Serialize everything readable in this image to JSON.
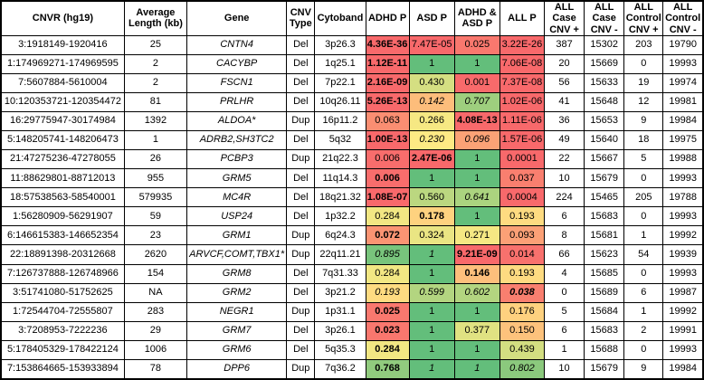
{
  "table": {
    "columns": [
      {
        "key": "cnvr",
        "label": "CNVR (hg19)"
      },
      {
        "key": "avg_length_kb",
        "label": "Average Length (kb)"
      },
      {
        "key": "gene",
        "label": "Gene"
      },
      {
        "key": "cnv_type",
        "label": "CNV Type"
      },
      {
        "key": "cytoband",
        "label": "Cytoband"
      },
      {
        "key": "adhd_p",
        "label": "ADHD P"
      },
      {
        "key": "asd_p",
        "label": "ASD P"
      },
      {
        "key": "adhd_asd_p",
        "label": "ADHD & ASD P"
      },
      {
        "key": "all_p",
        "label": "ALL P"
      },
      {
        "key": "all_case_cnv_pos",
        "label": "ALL Case CNV +"
      },
      {
        "key": "all_case_cnv_neg",
        "label": "ALL Case CNV -"
      },
      {
        "key": "all_control_cnv_pos",
        "label": "ALL Control CNV +"
      },
      {
        "key": "all_control_cnv_neg",
        "label": "ALL Control CNV -"
      }
    ],
    "conditional_format": {
      "low_color": "#F8696B",
      "mid_color": "#FFEB84",
      "high_color": "#63BE7B",
      "min": 0,
      "mid": 0.22,
      "max": 1
    },
    "rows": [
      {
        "cnvr": "3:1918149-1920416",
        "avg_length_kb": "25",
        "gene": "CNTN4",
        "cnv_type": "Del",
        "cytoband": "3p26.3",
        "p_values": [
          {
            "value": "4.36E-36",
            "style": "b"
          },
          {
            "value": "7.47E-05",
            "style": ""
          },
          {
            "value": "0.025",
            "style": ""
          },
          {
            "value": "3.22E-26",
            "style": ""
          }
        ],
        "counts": [
          "387",
          "15302",
          "203",
          "19790"
        ]
      },
      {
        "cnvr": "1:174969271-174969595",
        "avg_length_kb": "2",
        "gene": "CACYBP",
        "cnv_type": "Del",
        "cytoband": "1q25.1",
        "p_values": [
          {
            "value": "1.12E-11",
            "style": "b"
          },
          {
            "value": "1",
            "style": ""
          },
          {
            "value": "1",
            "style": ""
          },
          {
            "value": "7.06E-08",
            "style": ""
          }
        ],
        "counts": [
          "20",
          "15669",
          "0",
          "19993"
        ]
      },
      {
        "cnvr": "7:5607884-5610004",
        "avg_length_kb": "2",
        "gene": "FSCN1",
        "cnv_type": "Del",
        "cytoband": "7p22.1",
        "p_values": [
          {
            "value": "2.16E-09",
            "style": "b"
          },
          {
            "value": "0.430",
            "style": ""
          },
          {
            "value": "0.001",
            "style": ""
          },
          {
            "value": "7.37E-08",
            "style": ""
          }
        ],
        "counts": [
          "56",
          "15633",
          "19",
          "19974"
        ]
      },
      {
        "cnvr": "10:120353721-120354472",
        "avg_length_kb": "81",
        "gene": "PRLHR",
        "cnv_type": "Del",
        "cytoband": "10q26.11",
        "p_values": [
          {
            "value": "5.26E-13",
            "style": "b"
          },
          {
            "value": "0.142",
            "style": "i"
          },
          {
            "value": "0.707",
            "style": "i"
          },
          {
            "value": "1.02E-06",
            "style": ""
          }
        ],
        "counts": [
          "41",
          "15648",
          "12",
          "19981"
        ]
      },
      {
        "cnvr": "16:29775947-30174984",
        "avg_length_kb": "1392",
        "gene": "ALDOA*",
        "cnv_type": "Dup",
        "cytoband": "16p11.2",
        "p_values": [
          {
            "value": "0.063",
            "style": ""
          },
          {
            "value": "0.266",
            "style": ""
          },
          {
            "value": "4.08E-13",
            "style": "b"
          },
          {
            "value": "1.11E-06",
            "style": ""
          }
        ],
        "counts": [
          "36",
          "15653",
          "9",
          "19984"
        ]
      },
      {
        "cnvr": "5:148205741-148206473",
        "avg_length_kb": "1",
        "gene": "ADRB2,SH3TC2",
        "cnv_type": "Del",
        "cytoband": "5q32",
        "p_values": [
          {
            "value": "1.00E-13",
            "style": "b"
          },
          {
            "value": "0.230",
            "style": "i"
          },
          {
            "value": "0.096",
            "style": "i"
          },
          {
            "value": "1.57E-06",
            "style": ""
          }
        ],
        "counts": [
          "49",
          "15640",
          "18",
          "19975"
        ]
      },
      {
        "cnvr": "21:47275236-47278055",
        "avg_length_kb": "26",
        "gene": "PCBP3",
        "cnv_type": "Dup",
        "cytoband": "21q22.3",
        "p_values": [
          {
            "value": "0.006",
            "style": ""
          },
          {
            "value": "2.47E-06",
            "style": "b"
          },
          {
            "value": "1",
            "style": ""
          },
          {
            "value": "0.0001",
            "style": ""
          }
        ],
        "counts": [
          "22",
          "15667",
          "5",
          "19988"
        ]
      },
      {
        "cnvr": "11:88629801-88712013",
        "avg_length_kb": "955",
        "gene": "GRM5",
        "cnv_type": "Del",
        "cytoband": "11q14.3",
        "p_values": [
          {
            "value": "0.006",
            "style": "b"
          },
          {
            "value": "1",
            "style": ""
          },
          {
            "value": "1",
            "style": ""
          },
          {
            "value": "0.037",
            "style": ""
          }
        ],
        "counts": [
          "10",
          "15679",
          "0",
          "19993"
        ]
      },
      {
        "cnvr": "18:57538563-58540001",
        "avg_length_kb": "579935",
        "gene": "MC4R",
        "cnv_type": "Del",
        "cytoband": "18q21.32",
        "p_values": [
          {
            "value": "1.08E-07",
            "style": "b"
          },
          {
            "value": "0.560",
            "style": ""
          },
          {
            "value": "0.641",
            "style": "i"
          },
          {
            "value": "0.0004",
            "style": ""
          }
        ],
        "counts": [
          "224",
          "15465",
          "205",
          "19788"
        ]
      },
      {
        "cnvr": "1:56280909-56291907",
        "avg_length_kb": "59",
        "gene": "USP24",
        "cnv_type": "Del",
        "cytoband": "1p32.2",
        "p_values": [
          {
            "value": "0.284",
            "style": ""
          },
          {
            "value": "0.178",
            "style": "b"
          },
          {
            "value": "1",
            "style": ""
          },
          {
            "value": "0.193",
            "style": ""
          }
        ],
        "counts": [
          "6",
          "15683",
          "0",
          "19993"
        ]
      },
      {
        "cnvr": "6:146615383-146652354",
        "avg_length_kb": "23",
        "gene": "GRM1",
        "cnv_type": "Dup",
        "cytoband": "6q24.3",
        "p_values": [
          {
            "value": "0.072",
            "style": "b"
          },
          {
            "value": "0.324",
            "style": ""
          },
          {
            "value": "0.271",
            "style": ""
          },
          {
            "value": "0.093",
            "style": ""
          }
        ],
        "counts": [
          "8",
          "15681",
          "1",
          "19992"
        ]
      },
      {
        "cnvr": "22:18891398-20312668",
        "avg_length_kb": "2620",
        "gene": "ARVCF,COMT,TBX1*",
        "cnv_type": "Dup",
        "cytoband": "22q11.21",
        "p_values": [
          {
            "value": "0.895",
            "style": "i"
          },
          {
            "value": "1",
            "style": "i"
          },
          {
            "value": "9.21E-09",
            "style": "b"
          },
          {
            "value": "0.014",
            "style": ""
          }
        ],
        "counts": [
          "66",
          "15623",
          "54",
          "19939"
        ]
      },
      {
        "cnvr": "7:126737888-126748966",
        "avg_length_kb": "154",
        "gene": "GRM8",
        "cnv_type": "Del",
        "cytoband": "7q31.33",
        "p_values": [
          {
            "value": "0.284",
            "style": ""
          },
          {
            "value": "1",
            "style": ""
          },
          {
            "value": "0.146",
            "style": "b"
          },
          {
            "value": "0.193",
            "style": ""
          }
        ],
        "counts": [
          "4",
          "15685",
          "0",
          "19993"
        ]
      },
      {
        "cnvr": "3:51741080-51752625",
        "avg_length_kb": "NA",
        "gene": "GRM2",
        "cnv_type": "Del",
        "cytoband": "3p21.2",
        "p_values": [
          {
            "value": "0.193",
            "style": "i"
          },
          {
            "value": "0.599",
            "style": "i"
          },
          {
            "value": "0.602",
            "style": "i"
          },
          {
            "value": "0.038",
            "style": "bi"
          }
        ],
        "counts": [
          "0",
          "15689",
          "6",
          "19987"
        ]
      },
      {
        "cnvr": "1:72544704-72555807",
        "avg_length_kb": "283",
        "gene": "NEGR1",
        "cnv_type": "Dup",
        "cytoband": "1p31.1",
        "p_values": [
          {
            "value": "0.025",
            "style": "b"
          },
          {
            "value": "1",
            "style": ""
          },
          {
            "value": "1",
            "style": ""
          },
          {
            "value": "0.176",
            "style": ""
          }
        ],
        "counts": [
          "5",
          "15684",
          "1",
          "19992"
        ]
      },
      {
        "cnvr": "3:7208953-7222236",
        "avg_length_kb": "29",
        "gene": "GRM7",
        "cnv_type": "Del",
        "cytoband": "3p26.1",
        "p_values": [
          {
            "value": "0.023",
            "style": "b"
          },
          {
            "value": "1",
            "style": ""
          },
          {
            "value": "0.377",
            "style": ""
          },
          {
            "value": "0.150",
            "style": ""
          }
        ],
        "counts": [
          "6",
          "15683",
          "2",
          "19991"
        ]
      },
      {
        "cnvr": "5:178405329-178422124",
        "avg_length_kb": "1006",
        "gene": "GRM6",
        "cnv_type": "Del",
        "cytoband": "5q35.3",
        "p_values": [
          {
            "value": "0.284",
            "style": "b"
          },
          {
            "value": "1",
            "style": ""
          },
          {
            "value": "1",
            "style": ""
          },
          {
            "value": "0.439",
            "style": ""
          }
        ],
        "counts": [
          "1",
          "15688",
          "0",
          "19993"
        ]
      },
      {
        "cnvr": "7:153864665-153933894",
        "avg_length_kb": "78",
        "gene": "DPP6",
        "cnv_type": "Dup",
        "cytoband": "7q36.2",
        "p_values": [
          {
            "value": "0.768",
            "style": "b"
          },
          {
            "value": "1",
            "style": "i"
          },
          {
            "value": "1",
            "style": "i"
          },
          {
            "value": "0.802",
            "style": "i"
          }
        ],
        "counts": [
          "10",
          "15679",
          "9",
          "19984"
        ]
      }
    ]
  }
}
